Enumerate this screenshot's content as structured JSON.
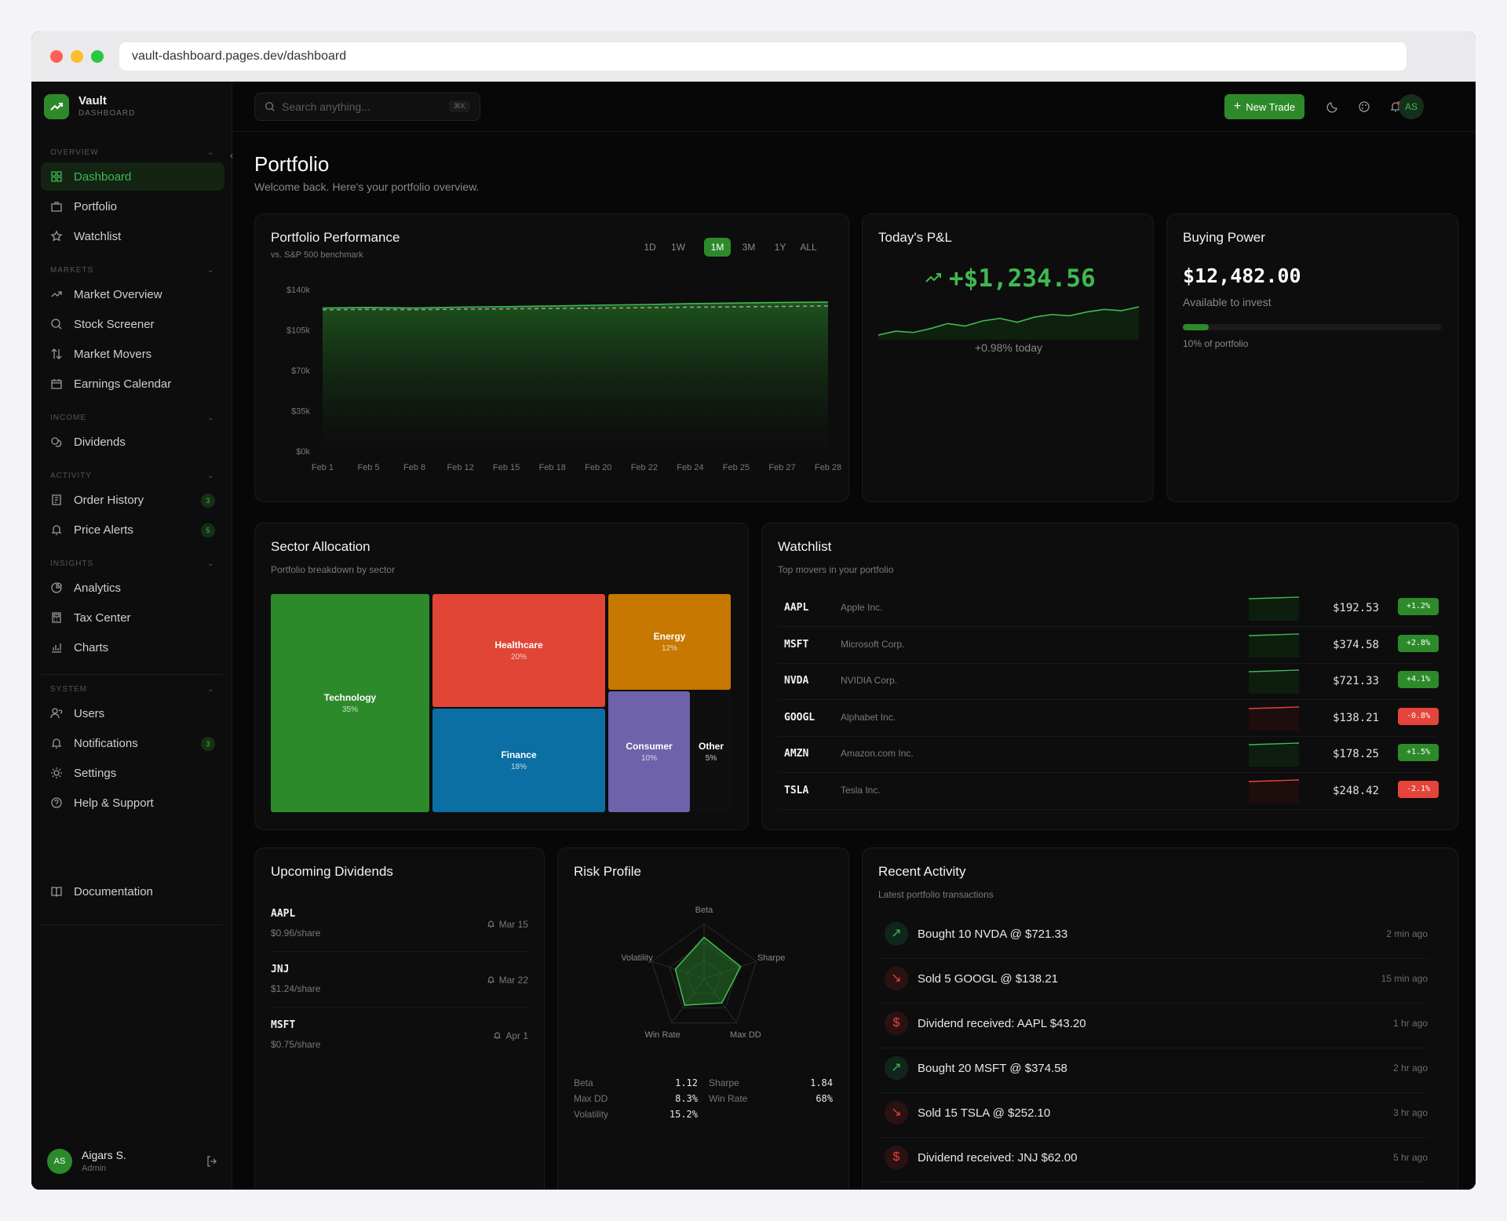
{
  "browser": {
    "url": "vault-dashboard.pages.dev/dashboard"
  },
  "brand": {
    "name": "Vault",
    "subtitle": "DASHBOARD"
  },
  "sidebar": {
    "sections": [
      {
        "label": "OVERVIEW",
        "items": [
          {
            "label": "Dashboard",
            "icon": "grid-icon",
            "active": true
          },
          {
            "label": "Portfolio",
            "icon": "briefcase-icon"
          },
          {
            "label": "Watchlist",
            "icon": "star-icon"
          }
        ]
      },
      {
        "label": "MARKETS",
        "items": [
          {
            "label": "Market Overview",
            "icon": "trend-icon"
          },
          {
            "label": "Stock Screener",
            "icon": "search-icon"
          },
          {
            "label": "Market Movers",
            "icon": "arrows-icon"
          },
          {
            "label": "Earnings Calendar",
            "icon": "calendar-icon"
          }
        ]
      },
      {
        "label": "INCOME",
        "items": [
          {
            "label": "Dividends",
            "icon": "coins-icon"
          }
        ]
      },
      {
        "label": "ACTIVITY",
        "items": [
          {
            "label": "Order History",
            "icon": "receipt-icon",
            "badge": "3"
          },
          {
            "label": "Price Alerts",
            "icon": "bell-icon",
            "badge": "5"
          }
        ]
      },
      {
        "label": "INSIGHTS",
        "items": [
          {
            "label": "Analytics",
            "icon": "pie-icon"
          },
          {
            "label": "Tax Center",
            "icon": "calculator-icon"
          },
          {
            "label": "Charts",
            "icon": "chart-icon"
          }
        ]
      },
      {
        "label": "SYSTEM",
        "items": [
          {
            "label": "Users",
            "icon": "users-icon"
          },
          {
            "label": "Notifications",
            "icon": "bell-icon",
            "badge": "3"
          },
          {
            "label": "Settings",
            "icon": "gear-icon"
          },
          {
            "label": "Help & Support",
            "icon": "help-icon"
          }
        ]
      }
    ],
    "documentation": "Documentation",
    "user": {
      "initials": "AS",
      "name": "Aigars S.",
      "role": "Admin"
    }
  },
  "topbar": {
    "search_placeholder": "Search anything...",
    "shortcut": "⌘K",
    "new_trade": "New Trade",
    "avatar": "AS"
  },
  "page": {
    "title": "Portfolio",
    "subtitle": "Welcome back. Here's your portfolio overview."
  },
  "performance": {
    "title": "Portfolio Performance",
    "subtitle": "vs. S&P 500 benchmark",
    "ranges": [
      "1D",
      "1W",
      "1M",
      "3M",
      "1Y",
      "ALL"
    ],
    "selected_range": "1M"
  },
  "chart_data": {
    "type": "area",
    "x": [
      "Feb 1",
      "Feb 5",
      "Feb 8",
      "Feb 12",
      "Feb 15",
      "Feb 18",
      "Feb 20",
      "Feb 22",
      "Feb 24",
      "Feb 25",
      "Feb 27",
      "Feb 28"
    ],
    "y_ticks": [
      "$140k",
      "$105k",
      "$70k",
      "$35k",
      "$0k"
    ],
    "ylim": [
      0,
      140000
    ],
    "series": [
      {
        "values": [
          124000,
          124500,
          124000,
          124800,
          125200,
          125800,
          126500,
          127000,
          127800,
          128300,
          128800,
          129200
        ],
        "color": "#3fb950",
        "style": "solid"
      },
      {
        "values": [
          122500,
          122800,
          122600,
          123000,
          123300,
          123600,
          123900,
          124300,
          124700,
          125000,
          125400,
          125800
        ],
        "color": "#9a9a9a",
        "style": "dashed"
      }
    ],
    "grid": false
  },
  "pnl": {
    "title": "Today's P&L",
    "value": "+$1,234.56",
    "note": "+0.98% today",
    "spark": [
      0,
      3,
      2,
      5,
      9,
      7,
      11,
      13,
      10,
      14,
      16,
      15,
      18,
      20,
      19,
      22
    ]
  },
  "buying_power": {
    "title": "Buying Power",
    "value": "$12,482.00",
    "label": "Available to invest",
    "progress": 0.1,
    "note": "10% of portfolio"
  },
  "sectors": {
    "title": "Sector Allocation",
    "subtitle": "Portfolio breakdown by sector",
    "items": [
      {
        "name": "Technology",
        "pct": "35%",
        "color": "#2d8a2b"
      },
      {
        "name": "Healthcare",
        "pct": "20%",
        "color": "#e04535"
      },
      {
        "name": "Finance",
        "pct": "18%",
        "color": "#0b6fa4"
      },
      {
        "name": "Energy",
        "pct": "12%",
        "color": "#c77800"
      },
      {
        "name": "Consumer",
        "pct": "10%",
        "color": "#6e63aa"
      },
      {
        "name": "Other",
        "pct": "5%",
        "color": "#0f0f0f"
      }
    ]
  },
  "watchlist": {
    "title": "Watchlist",
    "subtitle": "Top movers in your portfolio",
    "items": [
      {
        "sym": "AAPL",
        "name": "Apple Inc.",
        "price": "$192.53",
        "change": "+1.2%",
        "up": true
      },
      {
        "sym": "MSFT",
        "name": "Microsoft Corp.",
        "price": "$374.58",
        "change": "+2.8%",
        "up": true
      },
      {
        "sym": "NVDA",
        "name": "NVIDIA Corp.",
        "price": "$721.33",
        "change": "+4.1%",
        "up": true
      },
      {
        "sym": "GOOGL",
        "name": "Alphabet Inc.",
        "price": "$138.21",
        "change": "-0.8%",
        "up": false
      },
      {
        "sym": "AMZN",
        "name": "Amazon.com Inc.",
        "price": "$178.25",
        "change": "+1.5%",
        "up": true
      },
      {
        "sym": "TSLA",
        "name": "Tesla Inc.",
        "price": "$248.42",
        "change": "-2.1%",
        "up": false
      }
    ]
  },
  "dividends": {
    "title": "Upcoming Dividends",
    "items": [
      {
        "sym": "AAPL",
        "amount": "$0.96/share",
        "date": "Mar 15"
      },
      {
        "sym": "JNJ",
        "amount": "$1.24/share",
        "date": "Mar 22"
      },
      {
        "sym": "MSFT",
        "amount": "$0.75/share",
        "date": "Apr 1"
      }
    ]
  },
  "risk": {
    "title": "Risk Profile",
    "axes": [
      "Beta",
      "Sharpe",
      "Max DD",
      "Win Rate",
      "Volatility"
    ],
    "levels": [
      0.75,
      0.7,
      0.55,
      0.6,
      0.55
    ],
    "metrics": [
      {
        "label": "Beta",
        "value": "1.12"
      },
      {
        "label": "Sharpe",
        "value": "1.84"
      },
      {
        "label": "Max DD",
        "value": "8.3%"
      },
      {
        "label": "Win Rate",
        "value": "68%"
      },
      {
        "label": "Volatility",
        "value": "15.2%"
      }
    ]
  },
  "activity": {
    "title": "Recent Activity",
    "subtitle": "Latest portfolio transactions",
    "items": [
      {
        "text": "Bought 10 NVDA @ $721.33",
        "time": "2 min ago",
        "kind": "buy"
      },
      {
        "text": "Sold 5 GOOGL @ $138.21",
        "time": "15 min ago",
        "kind": "sell"
      },
      {
        "text": "Dividend received: AAPL $43.20",
        "time": "1 hr ago",
        "kind": "dividend"
      },
      {
        "text": "Bought 20 MSFT @ $374.58",
        "time": "2 hr ago",
        "kind": "buy"
      },
      {
        "text": "Sold 15 TSLA @ $252.10",
        "time": "3 hr ago",
        "kind": "sell"
      },
      {
        "text": "Dividend received: JNJ $62.00",
        "time": "5 hr ago",
        "kind": "dividend"
      }
    ]
  },
  "colors": {
    "accent": "#2d8a2b",
    "up": "#3fb950",
    "down": "#e5443a"
  }
}
